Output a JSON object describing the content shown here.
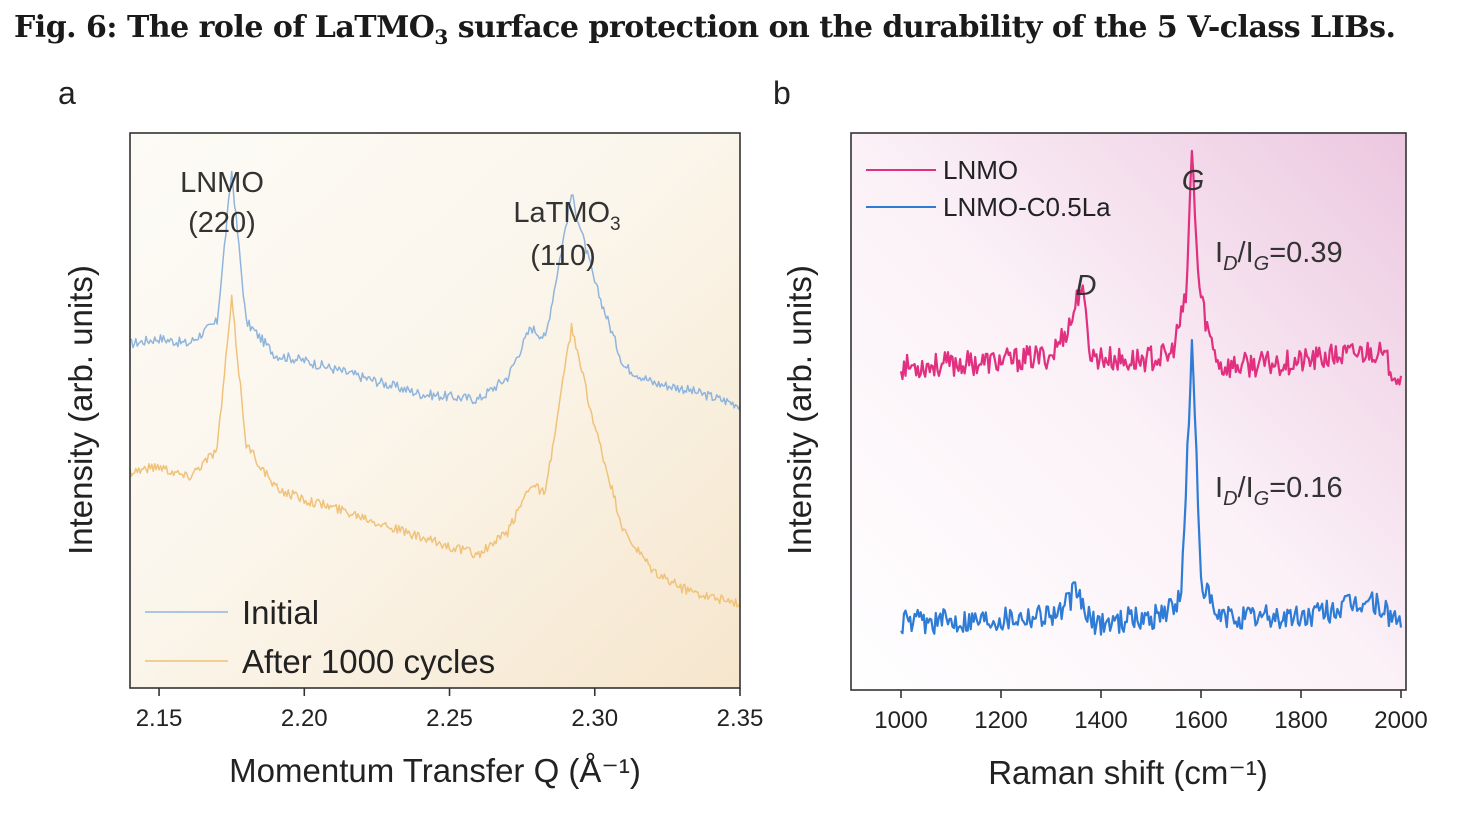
{
  "figure": {
    "title_prefix": "Fig. 6: The role of LaTMO",
    "title_sub": "3",
    "title_suffix": " surface protection on the durability of the 5 V-class LIBs."
  },
  "chart_data": [
    {
      "panel": "a",
      "type": "line",
      "xlabel": "Momentum Transfer Q (Å⁻¹)",
      "ylabel": "Intensity (arb. units)",
      "xlim": [
        2.14,
        2.35
      ],
      "x_ticks": [
        "2.15",
        "2.20",
        "2.25",
        "2.30",
        "2.35"
      ],
      "legend_position": "bottom-left",
      "annotations": [
        {
          "line1": "LNMO",
          "line2": "(220)"
        },
        {
          "line1": "LaTMO",
          "sub": "3",
          "line2": "(110)"
        }
      ],
      "series": [
        {
          "name": "Initial",
          "color": "#8fb5dd",
          "points": [
            [
              2.14,
              0.62
            ],
            [
              2.15,
              0.63
            ],
            [
              2.16,
              0.62
            ],
            [
              2.17,
              0.66
            ],
            [
              2.175,
              0.93
            ],
            [
              2.18,
              0.66
            ],
            [
              2.19,
              0.6
            ],
            [
              2.2,
              0.59
            ],
            [
              2.22,
              0.56
            ],
            [
              2.24,
              0.53
            ],
            [
              2.26,
              0.52
            ],
            [
              2.27,
              0.56
            ],
            [
              2.278,
              0.65
            ],
            [
              2.283,
              0.63
            ],
            [
              2.292,
              0.89
            ],
            [
              2.3,
              0.73
            ],
            [
              2.31,
              0.58
            ],
            [
              2.32,
              0.55
            ],
            [
              2.33,
              0.54
            ],
            [
              2.35,
              0.51
            ]
          ]
        },
        {
          "name": "After 1000 cycles",
          "color": "#f0c27a",
          "points": [
            [
              2.14,
              0.39
            ],
            [
              2.15,
              0.4
            ],
            [
              2.16,
              0.38
            ],
            [
              2.17,
              0.43
            ],
            [
              2.175,
              0.7
            ],
            [
              2.18,
              0.44
            ],
            [
              2.19,
              0.36
            ],
            [
              2.2,
              0.34
            ],
            [
              2.22,
              0.31
            ],
            [
              2.24,
              0.27
            ],
            [
              2.26,
              0.24
            ],
            [
              2.27,
              0.28
            ],
            [
              2.278,
              0.37
            ],
            [
              2.283,
              0.35
            ],
            [
              2.292,
              0.65
            ],
            [
              2.3,
              0.47
            ],
            [
              2.31,
              0.28
            ],
            [
              2.32,
              0.21
            ],
            [
              2.33,
              0.18
            ],
            [
              2.35,
              0.15
            ]
          ]
        }
      ]
    },
    {
      "panel": "b",
      "type": "line",
      "xlabel": "Raman shift (cm⁻¹)",
      "ylabel": "Intensity (arb. units)",
      "xlim": [
        900,
        2010
      ],
      "x_ticks": [
        "1000",
        "1200",
        "1400",
        "1600",
        "1800",
        "2000"
      ],
      "legend_position": "top-left",
      "annotations": [
        {
          "text": "D"
        },
        {
          "text": "G"
        },
        {
          "ratio": "0.39"
        },
        {
          "ratio": "0.16"
        }
      ],
      "series": [
        {
          "name": "LNMO",
          "color": "#e0307f",
          "points": [
            [
              1000,
              0.58
            ],
            [
              1200,
              0.59
            ],
            [
              1300,
              0.6
            ],
            [
              1340,
              0.66
            ],
            [
              1360,
              0.73
            ],
            [
              1380,
              0.6
            ],
            [
              1450,
              0.59
            ],
            [
              1540,
              0.6
            ],
            [
              1570,
              0.7
            ],
            [
              1582,
              0.97
            ],
            [
              1595,
              0.73
            ],
            [
              1615,
              0.64
            ],
            [
              1640,
              0.58
            ],
            [
              1800,
              0.59
            ],
            [
              1950,
              0.61
            ],
            [
              2000,
              0.56
            ]
          ]
        },
        {
          "name": "LNMO-C0.5La",
          "color": "#2e7cd6",
          "points": [
            [
              1000,
              0.12
            ],
            [
              1200,
              0.13
            ],
            [
              1320,
              0.14
            ],
            [
              1350,
              0.18
            ],
            [
              1380,
              0.12
            ],
            [
              1500,
              0.13
            ],
            [
              1560,
              0.16
            ],
            [
              1582,
              0.62
            ],
            [
              1600,
              0.2
            ],
            [
              1630,
              0.13
            ],
            [
              1800,
              0.13
            ],
            [
              1940,
              0.16
            ],
            [
              2000,
              0.12
            ]
          ]
        }
      ]
    }
  ]
}
